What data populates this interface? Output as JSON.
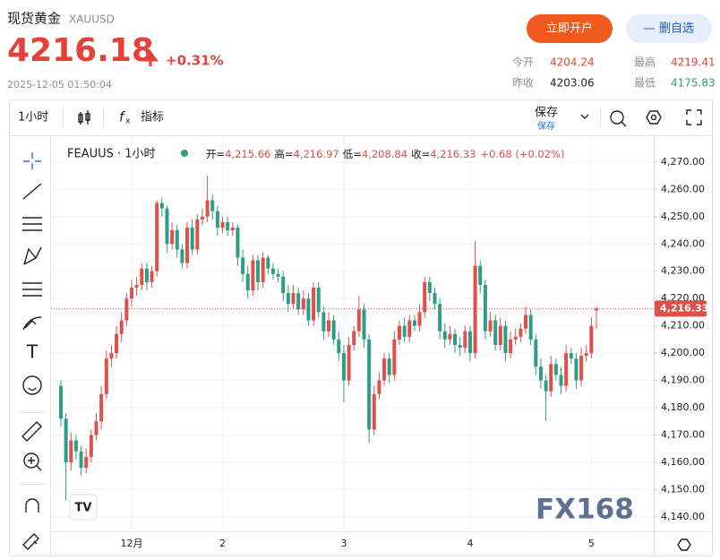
{
  "header": {
    "title": "现货黄金",
    "symbol": "XAUUSD",
    "price": "4216.18",
    "change": "+0.31%",
    "time": "2025-12-05 01:50:04",
    "open_account": "立即开户",
    "remove_watch": "— 删自选",
    "stats": [
      {
        "label": "今开",
        "value": "4204.24"
      },
      {
        "label": "最高",
        "value": "4219.41"
      },
      {
        "label": "昨收",
        "value": "4203.06"
      },
      {
        "label": "最低",
        "value": "4175.83"
      }
    ]
  },
  "toolbar": {
    "interval": "1小时",
    "indicators": "指标",
    "save": "保存",
    "save_sub": "保存"
  },
  "chart_data": {
    "type": "candlestick",
    "legend_title": "FEAUUS · 1小时",
    "ohlc_legend": [
      {
        "label": "开=",
        "value": "4,215.66"
      },
      {
        "label": "高=",
        "value": "4,216.97"
      },
      {
        "label": "低=",
        "value": "4,208.84"
      },
      {
        "label": "收=",
        "value": "4,216.33"
      }
    ],
    "change_legend": "+0.68 (+0.02%)",
    "watermark": "FX168",
    "up_color": "#e0504a",
    "down_color": "#2f9c84",
    "grid": true,
    "categories": [
      null,
      null,
      null,
      null,
      null,
      null,
      null,
      null,
      null,
      null,
      null,
      null,
      null,
      null,
      "12月",
      null,
      null,
      null,
      null,
      null,
      null,
      null,
      null,
      null,
      null,
      null,
      null,
      null,
      null,
      null,
      null,
      null,
      "2",
      null,
      null,
      null,
      null,
      null,
      null,
      null,
      null,
      null,
      null,
      null,
      null,
      null,
      null,
      null,
      null,
      null,
      null,
      null,
      null,
      null,
      null,
      null,
      "3",
      null,
      null,
      null,
      null,
      null,
      null,
      null,
      null,
      null,
      null,
      null,
      null,
      null,
      null,
      null,
      null,
      null,
      null,
      null,
      null,
      null,
      null,
      null,
      null,
      "4",
      null,
      null,
      null,
      null,
      null,
      null,
      null,
      null,
      null,
      null,
      null,
      null,
      null,
      null,
      null,
      null,
      null,
      null,
      null,
      null,
      null,
      null,
      null,
      "5",
      null
    ],
    "open": [
      4188,
      4176,
      4160,
      4168,
      4164,
      4158,
      4162,
      4170,
      4175,
      4185,
      4198,
      4200,
      4207,
      4212,
      4220,
      4224,
      4225,
      4231,
      4226,
      4230,
      4255,
      4253,
      4240,
      4245,
      4238,
      4233,
      4246,
      4238,
      4249,
      4250,
      4256,
      4252,
      4246,
      4248,
      4245,
      4246,
      4235,
      4229,
      4223,
      4234,
      4226,
      4235,
      4231,
      4229,
      4228,
      4222,
      4218,
      4222,
      4216,
      4220,
      4212,
      4224,
      4215,
      4208,
      4212,
      4205,
      4200,
      4190,
      4203,
      4208,
      4216,
      4205,
      4172,
      4185,
      4190,
      4198,
      4192,
      4205,
      4210,
      4206,
      4212,
      4210,
      4215,
      4226,
      4222,
      4218,
      4208,
      4205,
      4207,
      4203,
      4202,
      4208,
      4200,
      4232,
      4225,
      4208,
      4212,
      4203,
      4210,
      4200,
      4205,
      4206,
      4209,
      4214,
      4205,
      4195,
      4190,
      4186,
      4196,
      4192,
      4188,
      4200,
      4198,
      4190,
      4199,
      4200,
      4215.66
    ],
    "high": [
      4190,
      4178,
      4171,
      4170,
      4166,
      4165,
      4172,
      4178,
      4188,
      4201,
      4203,
      4210,
      4215,
      4222,
      4227,
      4228,
      4233,
      4233,
      4232,
      4256,
      4257,
      4254,
      4248,
      4247,
      4240,
      4248,
      4249,
      4251,
      4253,
      4265,
      4258,
      4254,
      4250,
      4250,
      4248,
      4247,
      4238,
      4232,
      4236,
      4236,
      4237,
      4236,
      4233,
      4231,
      4230,
      4225,
      4225,
      4224,
      4223,
      4222,
      4226,
      4226,
      4217,
      4215,
      4214,
      4208,
      4203,
      4206,
      4210,
      4221,
      4218,
      4207,
      4188,
      4193,
      4200,
      4200,
      4208,
      4212,
      4213,
      4214,
      4214,
      4218,
      4228,
      4228,
      4224,
      4220,
      4211,
      4210,
      4209,
      4206,
      4210,
      4210,
      4241,
      4234,
      4227,
      4215,
      4214,
      4213,
      4212,
      4208,
      4209,
      4211,
      4217,
      4216,
      4207,
      4198,
      4192,
      4199,
      4198,
      4195,
      4203,
      4202,
      4200,
      4202,
      4203,
      4213,
      4216.97
    ],
    "low": [
      4173,
      4146,
      4157,
      4161,
      4155,
      4156,
      4160,
      4168,
      4172,
      4183,
      4195,
      4198,
      4204,
      4210,
      4217,
      4221,
      4223,
      4223,
      4224,
      4228,
      4250,
      4237,
      4238,
      4235,
      4231,
      4231,
      4236,
      4236,
      4247,
      4248,
      4249,
      4243,
      4244,
      4243,
      4243,
      4232,
      4226,
      4220,
      4221,
      4223,
      4224,
      4229,
      4227,
      4226,
      4219,
      4215,
      4216,
      4214,
      4214,
      4210,
      4210,
      4213,
      4205,
      4206,
      4203,
      4197,
      4182,
      4188,
      4201,
      4206,
      4202,
      4167,
      4170,
      4183,
      4188,
      4189,
      4190,
      4203,
      4204,
      4204,
      4208,
      4208,
      4213,
      4219,
      4216,
      4205,
      4202,
      4203,
      4200,
      4199,
      4200,
      4197,
      4198,
      4222,
      4205,
      4206,
      4201,
      4201,
      4197,
      4198,
      4203,
      4204,
      4207,
      4203,
      4192,
      4187,
      4175,
      4184,
      4190,
      4185,
      4186,
      4196,
      4187,
      4188,
      4197,
      4198,
      4208.84
    ],
    "close": [
      4176,
      4160,
      4168,
      4164,
      4158,
      4162,
      4170,
      4175,
      4185,
      4198,
      4200,
      4207,
      4212,
      4220,
      4224,
      4225,
      4231,
      4226,
      4230,
      4255,
      4253,
      4240,
      4245,
      4238,
      4233,
      4246,
      4238,
      4249,
      4250,
      4256,
      4252,
      4246,
      4248,
      4245,
      4246,
      4235,
      4229,
      4223,
      4234,
      4226,
      4235,
      4231,
      4229,
      4228,
      4222,
      4218,
      4222,
      4216,
      4220,
      4212,
      4224,
      4215,
      4208,
      4212,
      4205,
      4200,
      4190,
      4203,
      4208,
      4216,
      4205,
      4172,
      4185,
      4190,
      4198,
      4192,
      4205,
      4210,
      4206,
      4212,
      4210,
      4215,
      4226,
      4222,
      4218,
      4208,
      4205,
      4207,
      4203,
      4202,
      4208,
      4200,
      4232,
      4225,
      4208,
      4212,
      4203,
      4210,
      4200,
      4205,
      4206,
      4209,
      4214,
      4205,
      4195,
      4190,
      4186,
      4196,
      4192,
      4188,
      4200,
      4198,
      4190,
      4199,
      4200,
      4210,
      4216.33
    ],
    "last_price": {
      "value": 4216.33,
      "label": "4,216.33"
    },
    "ylim": [
      4134.7,
      4278.5
    ],
    "yticks": [
      {
        "value": 4140,
        "label": "4,140.00"
      },
      {
        "value": 4150,
        "label": "4,150.00"
      },
      {
        "value": 4160,
        "label": "4,160.00"
      },
      {
        "value": 4170,
        "label": "4,170.00"
      },
      {
        "value": 4180,
        "label": "4,180.00"
      },
      {
        "value": 4190,
        "label": "4,190.00"
      },
      {
        "value": 4200,
        "label": "4,200.00"
      },
      {
        "value": 4210,
        "label": "4,210.00"
      },
      {
        "value": 4220,
        "label": "4,220.00"
      },
      {
        "value": 4230,
        "label": "4,230.00"
      },
      {
        "value": 4240,
        "label": "4,240.00"
      },
      {
        "value": 4250,
        "label": "4,250.00"
      },
      {
        "value": 4260,
        "label": "4,260.00"
      },
      {
        "value": 4270,
        "label": "4,270.00"
      }
    ]
  }
}
